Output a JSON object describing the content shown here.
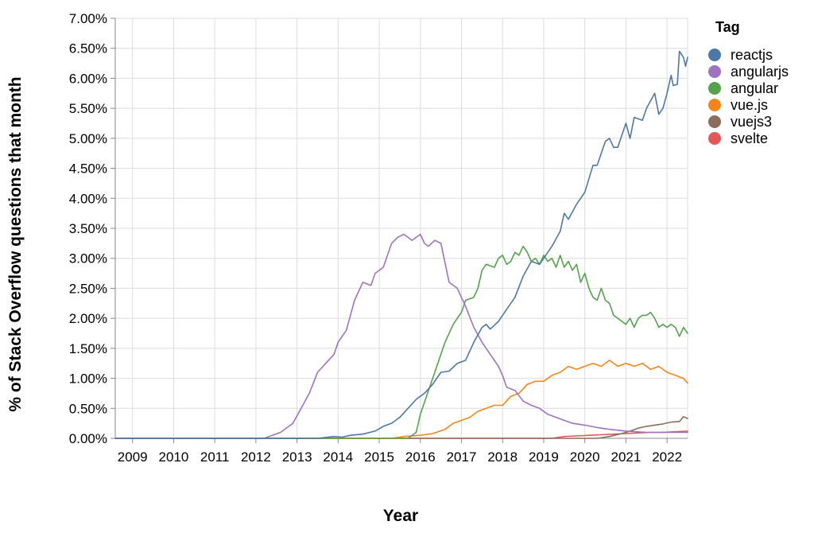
{
  "chart_data": {
    "type": "line",
    "xlabel": "Year",
    "ylabel": "% of Stack Overflow questions that month",
    "xlim": [
      2008.58,
      2022.5
    ],
    "ylim": [
      0,
      7
    ],
    "x_ticks": [
      2009,
      2010,
      2011,
      2012,
      2013,
      2014,
      2015,
      2016,
      2017,
      2018,
      2019,
      2020,
      2021,
      2022
    ],
    "y_ticks": [
      {
        "value": 0,
        "label": "0.00%"
      },
      {
        "value": 0.5,
        "label": "0.50%"
      },
      {
        "value": 1,
        "label": "1.00%"
      },
      {
        "value": 1.5,
        "label": "1.50%"
      },
      {
        "value": 2,
        "label": "2.00%"
      },
      {
        "value": 2.5,
        "label": "2.50%"
      },
      {
        "value": 3,
        "label": "3.00%"
      },
      {
        "value": 3.5,
        "label": "3.50%"
      },
      {
        "value": 4,
        "label": "4.00%"
      },
      {
        "value": 4.5,
        "label": "4.50%"
      },
      {
        "value": 5,
        "label": "5.00%"
      },
      {
        "value": 5.5,
        "label": "5.50%"
      },
      {
        "value": 6,
        "label": "6.00%"
      },
      {
        "value": 6.5,
        "label": "6.50%"
      },
      {
        "value": 7,
        "label": "7.00%"
      }
    ],
    "grid": true,
    "legend": {
      "title": "Tag",
      "position": "right"
    },
    "series": [
      {
        "name": "reactjs",
        "color": "#4c78a8",
        "points": [
          [
            2008.58,
            0
          ],
          [
            2013.5,
            0
          ],
          [
            2013.9,
            0.03
          ],
          [
            2014.1,
            0.02
          ],
          [
            2014.3,
            0.05
          ],
          [
            2014.6,
            0.07
          ],
          [
            2014.9,
            0.12
          ],
          [
            2015.1,
            0.2
          ],
          [
            2015.3,
            0.25
          ],
          [
            2015.5,
            0.35
          ],
          [
            2015.7,
            0.5
          ],
          [
            2015.9,
            0.65
          ],
          [
            2016.1,
            0.75
          ],
          [
            2016.3,
            0.9
          ],
          [
            2016.5,
            1.1
          ],
          [
            2016.7,
            1.12
          ],
          [
            2016.9,
            1.25
          ],
          [
            2017.1,
            1.3
          ],
          [
            2017.3,
            1.6
          ],
          [
            2017.5,
            1.85
          ],
          [
            2017.6,
            1.9
          ],
          [
            2017.7,
            1.82
          ],
          [
            2017.9,
            1.95
          ],
          [
            2018.1,
            2.15
          ],
          [
            2018.3,
            2.35
          ],
          [
            2018.5,
            2.7
          ],
          [
            2018.7,
            2.95
          ],
          [
            2018.9,
            2.9
          ],
          [
            2019.0,
            3.0
          ],
          [
            2019.2,
            3.2
          ],
          [
            2019.4,
            3.45
          ],
          [
            2019.5,
            3.75
          ],
          [
            2019.6,
            3.65
          ],
          [
            2019.8,
            3.9
          ],
          [
            2020.0,
            4.1
          ],
          [
            2020.2,
            4.55
          ],
          [
            2020.3,
            4.55
          ],
          [
            2020.5,
            4.95
          ],
          [
            2020.6,
            5.0
          ],
          [
            2020.7,
            4.85
          ],
          [
            2020.8,
            4.85
          ],
          [
            2020.9,
            5.05
          ],
          [
            2021.0,
            5.25
          ],
          [
            2021.1,
            5.0
          ],
          [
            2021.2,
            5.35
          ],
          [
            2021.4,
            5.3
          ],
          [
            2021.5,
            5.5
          ],
          [
            2021.7,
            5.75
          ],
          [
            2021.8,
            5.4
          ],
          [
            2021.9,
            5.5
          ],
          [
            2022.0,
            5.75
          ],
          [
            2022.1,
            6.05
          ],
          [
            2022.15,
            5.88
          ],
          [
            2022.25,
            5.9
          ],
          [
            2022.3,
            6.45
          ],
          [
            2022.4,
            6.35
          ],
          [
            2022.45,
            6.2
          ],
          [
            2022.5,
            6.35
          ]
        ]
      },
      {
        "name": "angularjs",
        "color": "#9f72c0",
        "points": [
          [
            2008.58,
            0
          ],
          [
            2012.2,
            0
          ],
          [
            2012.6,
            0.1
          ],
          [
            2012.9,
            0.25
          ],
          [
            2013.1,
            0.5
          ],
          [
            2013.3,
            0.75
          ],
          [
            2013.5,
            1.1
          ],
          [
            2013.7,
            1.25
          ],
          [
            2013.9,
            1.4
          ],
          [
            2014.0,
            1.6
          ],
          [
            2014.2,
            1.8
          ],
          [
            2014.4,
            2.3
          ],
          [
            2014.6,
            2.6
          ],
          [
            2014.8,
            2.55
          ],
          [
            2014.9,
            2.75
          ],
          [
            2015.1,
            2.85
          ],
          [
            2015.3,
            3.25
          ],
          [
            2015.45,
            3.35
          ],
          [
            2015.6,
            3.4
          ],
          [
            2015.8,
            3.3
          ],
          [
            2016.0,
            3.4
          ],
          [
            2016.1,
            3.25
          ],
          [
            2016.2,
            3.2
          ],
          [
            2016.35,
            3.3
          ],
          [
            2016.5,
            3.25
          ],
          [
            2016.7,
            2.6
          ],
          [
            2016.9,
            2.5
          ],
          [
            2017.1,
            2.2
          ],
          [
            2017.3,
            1.85
          ],
          [
            2017.5,
            1.6
          ],
          [
            2017.7,
            1.4
          ],
          [
            2017.9,
            1.2
          ],
          [
            2018.0,
            1.05
          ],
          [
            2018.1,
            0.85
          ],
          [
            2018.3,
            0.8
          ],
          [
            2018.5,
            0.62
          ],
          [
            2018.7,
            0.55
          ],
          [
            2018.9,
            0.5
          ],
          [
            2019.1,
            0.4
          ],
          [
            2019.3,
            0.35
          ],
          [
            2019.5,
            0.3
          ],
          [
            2019.7,
            0.25
          ],
          [
            2020.0,
            0.22
          ],
          [
            2020.3,
            0.18
          ],
          [
            2020.6,
            0.15
          ],
          [
            2021.0,
            0.12
          ],
          [
            2021.5,
            0.1
          ],
          [
            2022.0,
            0.1
          ],
          [
            2022.5,
            0.1
          ]
        ]
      },
      {
        "name": "angular",
        "color": "#54a24b",
        "points": [
          [
            2008.58,
            0
          ],
          [
            2015.7,
            0
          ],
          [
            2015.9,
            0.1
          ],
          [
            2016.0,
            0.4
          ],
          [
            2016.2,
            0.8
          ],
          [
            2016.4,
            1.2
          ],
          [
            2016.6,
            1.6
          ],
          [
            2016.8,
            1.9
          ],
          [
            2016.9,
            2.0
          ],
          [
            2017.0,
            2.1
          ],
          [
            2017.1,
            2.3
          ],
          [
            2017.3,
            2.35
          ],
          [
            2017.4,
            2.5
          ],
          [
            2017.5,
            2.8
          ],
          [
            2017.6,
            2.9
          ],
          [
            2017.8,
            2.85
          ],
          [
            2017.9,
            3.0
          ],
          [
            2018.0,
            3.05
          ],
          [
            2018.1,
            2.9
          ],
          [
            2018.2,
            2.95
          ],
          [
            2018.3,
            3.1
          ],
          [
            2018.4,
            3.05
          ],
          [
            2018.5,
            3.2
          ],
          [
            2018.6,
            3.1
          ],
          [
            2018.7,
            2.95
          ],
          [
            2018.8,
            3.0
          ],
          [
            2018.9,
            2.9
          ],
          [
            2019.0,
            3.05
          ],
          [
            2019.1,
            2.95
          ],
          [
            2019.2,
            3.0
          ],
          [
            2019.3,
            2.85
          ],
          [
            2019.4,
            3.05
          ],
          [
            2019.5,
            2.85
          ],
          [
            2019.6,
            2.95
          ],
          [
            2019.7,
            2.8
          ],
          [
            2019.8,
            2.9
          ],
          [
            2019.9,
            2.6
          ],
          [
            2020.0,
            2.75
          ],
          [
            2020.1,
            2.5
          ],
          [
            2020.2,
            2.35
          ],
          [
            2020.3,
            2.3
          ],
          [
            2020.4,
            2.5
          ],
          [
            2020.5,
            2.3
          ],
          [
            2020.6,
            2.25
          ],
          [
            2020.7,
            2.05
          ],
          [
            2020.8,
            2.0
          ],
          [
            2020.9,
            1.95
          ],
          [
            2021.0,
            1.9
          ],
          [
            2021.1,
            2.0
          ],
          [
            2021.2,
            1.85
          ],
          [
            2021.3,
            2.0
          ],
          [
            2021.4,
            2.05
          ],
          [
            2021.5,
            2.05
          ],
          [
            2021.6,
            2.1
          ],
          [
            2021.7,
            2.0
          ],
          [
            2021.8,
            1.85
          ],
          [
            2021.9,
            1.9
          ],
          [
            2022.0,
            1.85
          ],
          [
            2022.1,
            1.9
          ],
          [
            2022.2,
            1.85
          ],
          [
            2022.3,
            1.7
          ],
          [
            2022.4,
            1.85
          ],
          [
            2022.5,
            1.75
          ]
        ]
      },
      {
        "name": "vue.js",
        "color": "#f58518",
        "points": [
          [
            2008.58,
            0
          ],
          [
            2015.3,
            0
          ],
          [
            2015.6,
            0.03
          ],
          [
            2016.0,
            0.05
          ],
          [
            2016.3,
            0.08
          ],
          [
            2016.6,
            0.15
          ],
          [
            2016.8,
            0.25
          ],
          [
            2017.0,
            0.3
          ],
          [
            2017.2,
            0.35
          ],
          [
            2017.4,
            0.45
          ],
          [
            2017.6,
            0.5
          ],
          [
            2017.8,
            0.55
          ],
          [
            2018.0,
            0.55
          ],
          [
            2018.2,
            0.7
          ],
          [
            2018.4,
            0.75
          ],
          [
            2018.6,
            0.9
          ],
          [
            2018.8,
            0.95
          ],
          [
            2019.0,
            0.95
          ],
          [
            2019.2,
            1.05
          ],
          [
            2019.4,
            1.1
          ],
          [
            2019.6,
            1.2
          ],
          [
            2019.8,
            1.15
          ],
          [
            2020.0,
            1.2
          ],
          [
            2020.2,
            1.25
          ],
          [
            2020.4,
            1.2
          ],
          [
            2020.6,
            1.3
          ],
          [
            2020.8,
            1.2
          ],
          [
            2021.0,
            1.25
          ],
          [
            2021.2,
            1.2
          ],
          [
            2021.4,
            1.25
          ],
          [
            2021.6,
            1.15
          ],
          [
            2021.8,
            1.2
          ],
          [
            2022.0,
            1.1
          ],
          [
            2022.2,
            1.05
          ],
          [
            2022.4,
            1.0
          ],
          [
            2022.5,
            0.92
          ]
        ]
      },
      {
        "name": "vuejs3",
        "color": "#8c6d5b",
        "points": [
          [
            2008.58,
            0
          ],
          [
            2020.3,
            0
          ],
          [
            2020.6,
            0.03
          ],
          [
            2020.9,
            0.08
          ],
          [
            2021.1,
            0.12
          ],
          [
            2021.3,
            0.17
          ],
          [
            2021.5,
            0.2
          ],
          [
            2021.7,
            0.22
          ],
          [
            2021.9,
            0.24
          ],
          [
            2022.1,
            0.27
          ],
          [
            2022.3,
            0.28
          ],
          [
            2022.4,
            0.36
          ],
          [
            2022.5,
            0.33
          ]
        ]
      },
      {
        "name": "svelte",
        "color": "#e45756",
        "points": [
          [
            2008.58,
            0
          ],
          [
            2019.2,
            0
          ],
          [
            2019.5,
            0.03
          ],
          [
            2019.8,
            0.04
          ],
          [
            2020.1,
            0.05
          ],
          [
            2020.4,
            0.06
          ],
          [
            2020.7,
            0.07
          ],
          [
            2021.0,
            0.08
          ],
          [
            2021.3,
            0.09
          ],
          [
            2021.6,
            0.1
          ],
          [
            2021.9,
            0.1
          ],
          [
            2022.2,
            0.11
          ],
          [
            2022.5,
            0.12
          ]
        ]
      }
    ]
  }
}
